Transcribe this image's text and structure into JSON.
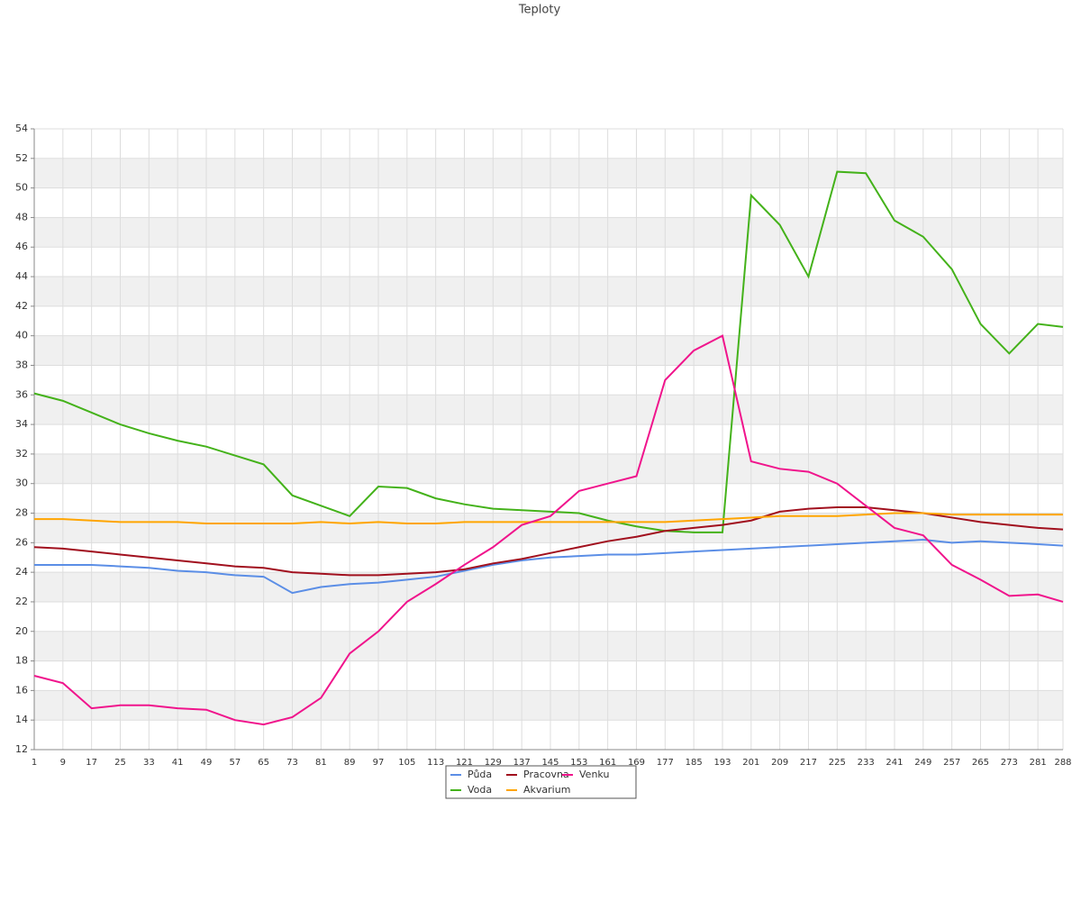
{
  "chart_data": {
    "type": "line",
    "title": "Teploty",
    "x": [
      1,
      9,
      17,
      25,
      33,
      41,
      49,
      57,
      65,
      73,
      81,
      89,
      97,
      105,
      113,
      121,
      129,
      137,
      145,
      153,
      161,
      169,
      177,
      185,
      193,
      201,
      209,
      217,
      225,
      233,
      241,
      249,
      257,
      265,
      273,
      281,
      288
    ],
    "xlim": [
      1,
      288
    ],
    "ylim": [
      12,
      54
    ],
    "yticks": [
      12,
      14,
      16,
      18,
      20,
      22,
      24,
      26,
      28,
      30,
      32,
      34,
      36,
      38,
      40,
      42,
      44,
      46,
      48,
      50,
      52,
      54
    ],
    "grid": true,
    "legend": "bottom",
    "series": [
      {
        "name": "Půda",
        "color": "#5b8ee6",
        "values": [
          24.5,
          24.5,
          24.5,
          24.4,
          24.3,
          24.1,
          24.0,
          23.8,
          23.7,
          22.6,
          23.0,
          23.2,
          23.3,
          23.5,
          23.7,
          24.1,
          24.5,
          24.8,
          25.0,
          25.1,
          25.2,
          25.2,
          25.3,
          25.4,
          25.5,
          25.6,
          25.7,
          25.8,
          25.9,
          26.0,
          26.1,
          26.2,
          26.0,
          26.1,
          26.0,
          25.9,
          25.8
        ]
      },
      {
        "name": "Voda",
        "color": "#44b21a",
        "values": [
          36.1,
          35.6,
          34.8,
          34.0,
          33.4,
          32.9,
          32.5,
          31.9,
          31.3,
          29.2,
          28.5,
          27.8,
          29.8,
          29.7,
          29.0,
          28.6,
          28.3,
          28.2,
          28.1,
          28.0,
          27.5,
          27.1,
          26.8,
          26.7,
          26.7,
          49.5,
          47.5,
          44.0,
          51.1,
          51.0,
          47.8,
          46.7,
          44.5,
          40.8,
          38.8,
          40.8,
          40.6
        ]
      },
      {
        "name": "Pracovna",
        "color": "#a1101e",
        "values": [
          25.7,
          25.6,
          25.4,
          25.2,
          25.0,
          24.8,
          24.6,
          24.4,
          24.3,
          24.0,
          23.9,
          23.8,
          23.8,
          23.9,
          24.0,
          24.2,
          24.6,
          24.9,
          25.3,
          25.7,
          26.1,
          26.4,
          26.8,
          27.0,
          27.2,
          27.5,
          28.1,
          28.3,
          28.4,
          28.4,
          28.2,
          28.0,
          27.7,
          27.4,
          27.2,
          27.0,
          26.9
        ]
      },
      {
        "name": "Akvarium",
        "color": "#ffa500",
        "values": [
          27.6,
          27.6,
          27.5,
          27.4,
          27.4,
          27.4,
          27.3,
          27.3,
          27.3,
          27.3,
          27.4,
          27.3,
          27.4,
          27.3,
          27.3,
          27.4,
          27.4,
          27.4,
          27.4,
          27.4,
          27.4,
          27.4,
          27.4,
          27.5,
          27.6,
          27.7,
          27.8,
          27.8,
          27.8,
          27.9,
          28.0,
          28.0,
          27.9,
          27.9,
          27.9,
          27.9,
          27.9
        ]
      },
      {
        "name": "Venku",
        "color": "#f0148c",
        "values": [
          17.0,
          16.5,
          14.8,
          15.0,
          15.0,
          14.8,
          14.7,
          14.0,
          13.7,
          14.2,
          15.5,
          18.5,
          20.0,
          22.0,
          23.2,
          24.5,
          25.7,
          27.2,
          27.8,
          29.5,
          30.0,
          30.5,
          37.0,
          39.0,
          40.0,
          31.5,
          31.0,
          30.8,
          30.0,
          28.5,
          27.0,
          26.5,
          24.5,
          23.5,
          22.4,
          22.5,
          22.0
        ]
      }
    ]
  }
}
